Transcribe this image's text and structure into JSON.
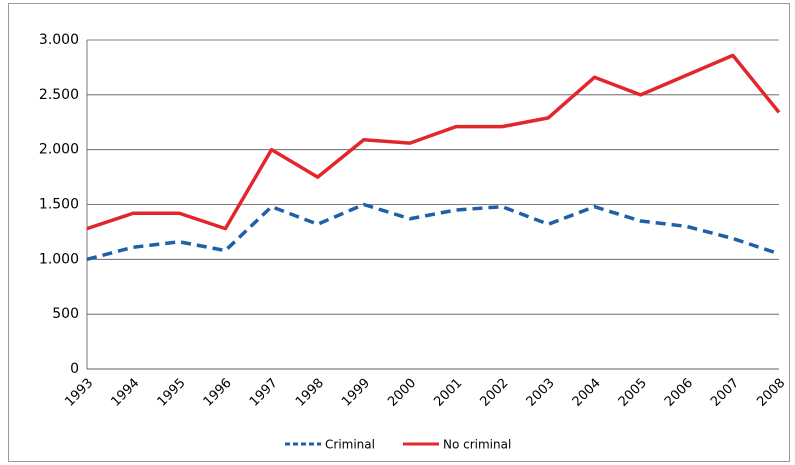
{
  "chart_data": {
    "type": "line",
    "categories": [
      "1993",
      "1994",
      "1995",
      "1996",
      "1997",
      "1998",
      "1999",
      "2000",
      "2001",
      "2002",
      "2003",
      "2004",
      "2005",
      "2006",
      "2007",
      "2008"
    ],
    "series": [
      {
        "name": "Criminal",
        "color": "#1f5fa8",
        "dashed": true,
        "values": [
          1000,
          1110,
          1160,
          1080,
          1480,
          1320,
          1500,
          1370,
          1450,
          1480,
          1320,
          1480,
          1350,
          1300,
          1190,
          1050
        ]
      },
      {
        "name": "No criminal",
        "color": "#e3262c",
        "dashed": false,
        "values": [
          1280,
          1420,
          1420,
          1280,
          2000,
          1750,
          2090,
          2060,
          2210,
          2210,
          2290,
          2660,
          2500,
          2680,
          2860,
          2340
        ]
      }
    ],
    "ylim": [
      0,
      3000
    ],
    "yticks": [
      0,
      500,
      {
        "value": 1000,
        "label": "1.000"
      },
      {
        "value": 1500,
        "label": "1.500"
      },
      {
        "value": 2000,
        "label": "2.000"
      },
      {
        "value": 2500,
        "label": "2.500"
      },
      {
        "value": 3000,
        "label": "3.000"
      }
    ],
    "grid": true,
    "legend": "bottom"
  }
}
